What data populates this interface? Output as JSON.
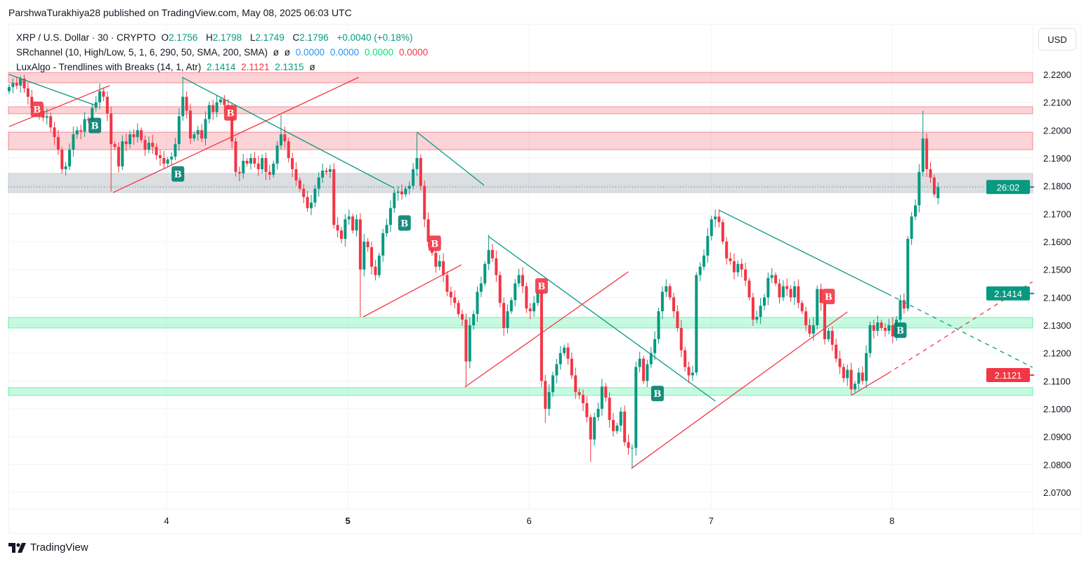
{
  "published": "ParshwaTurakhiya28 published on TradingView.com, May 08, 2025 06:03 UTC",
  "legend": {
    "symbol": "XRP / U.S. Dollar · 30 · CRYPTO",
    "o_label": "O",
    "o": "2.1756",
    "h_label": "H",
    "h": "2.1798",
    "l_label": "L",
    "l": "2.1749",
    "c_label": "C",
    "c": "2.1796",
    "change": "+0.0040 (+0.18%)",
    "ind1_name": "SRchannel (10, High/Low, 5, 1, 6, 290, 50, SMA, 200, SMA)",
    "ind1_vals": [
      "ø",
      "ø",
      "0.0000",
      "0.0000",
      "0.0000",
      "0.0000"
    ],
    "ind2_name": "LuxAlgo - Trendlines with Breaks (14, 1, Atr)",
    "ind2_vals": [
      "2.1414",
      "2.1121",
      "2.1315",
      "ø"
    ]
  },
  "currency_button": "USD",
  "footer_brand": "TradingView",
  "colors": {
    "up": "#089981",
    "down": "#f23645",
    "resistance_zone": "#f23645",
    "support_zone": "#00e676",
    "neutral_zone": "#b2b5be",
    "blue": "#2196f3"
  },
  "chart_data": {
    "type": "candlestick",
    "symbol": "XRP / U.S. Dollar",
    "interval": "30",
    "ylim": [
      2.066,
      2.228
    ],
    "y_ticks": [
      "2.2200",
      "2.2100",
      "2.2000",
      "2.1900",
      "2.1800",
      "2.1700",
      "2.1600",
      "2.1500",
      "2.1400",
      "2.1300",
      "2.1200",
      "2.1100",
      "2.1000",
      "2.0900",
      "2.0800",
      "2.0700"
    ],
    "x_ticks": [
      {
        "label": "4",
        "candle": 41.7,
        "bold": false
      },
      {
        "label": "5",
        "candle": 89.7,
        "bold": true
      },
      {
        "label": "6",
        "candle": 137.7,
        "bold": false
      },
      {
        "label": "7",
        "candle": 185.9,
        "bold": false
      },
      {
        "label": "8",
        "candle": 233.8,
        "bold": false
      }
    ],
    "grid": true,
    "first_open": 2.214,
    "closes": [
      2.2155,
      2.217,
      2.216,
      2.2185,
      2.215,
      2.212,
      2.208,
      2.206,
      2.207,
      2.2045,
      2.205,
      2.201,
      2.1975,
      2.193,
      2.186,
      2.187,
      2.193,
      2.1985,
      2.2,
      2.1995,
      2.204,
      2.2035,
      2.208,
      2.21,
      2.214,
      2.212,
      2.206,
      2.195,
      2.194,
      2.187,
      2.196,
      2.195,
      2.1985,
      2.1975,
      2.2,
      2.1965,
      2.193,
      2.1955,
      2.194,
      2.191,
      2.19,
      2.188,
      2.1895,
      2.1905,
      2.195,
      2.205,
      2.212,
      2.207,
      2.197,
      2.1985,
      2.2,
      2.197,
      2.204,
      2.209,
      2.2065,
      2.21,
      2.211,
      2.209,
      2.207,
      2.196,
      2.185,
      2.1845,
      2.189,
      2.188,
      2.19,
      2.188,
      2.186,
      2.19,
      2.185,
      2.184,
      2.188,
      2.1945,
      2.1985,
      2.196,
      2.19,
      2.186,
      2.182,
      2.179,
      2.176,
      2.172,
      2.174,
      2.179,
      2.183,
      2.1855,
      2.185,
      2.186,
      2.166,
      2.164,
      2.161,
      2.168,
      2.169,
      2.164,
      2.168,
      2.15,
      2.16,
      2.158,
      2.151,
      2.148,
      2.155,
      2.163,
      2.166,
      2.172,
      2.1775,
      2.178,
      2.177,
      2.179,
      2.18,
      2.186,
      2.19,
      2.18,
      2.168,
      2.16,
      2.156,
      2.151,
      2.153,
      2.148,
      2.142,
      2.14,
      2.138,
      2.134,
      2.132,
      2.117,
      2.13,
      2.134,
      2.142,
      2.145,
      2.152,
      2.157,
      2.154,
      2.148,
      2.138,
      2.129,
      2.135,
      2.139,
      2.145,
      2.148,
      2.144,
      2.136,
      2.135,
      2.138,
      2.142,
      2.11,
      2.1,
      2.106,
      2.112,
      2.116,
      2.12,
      2.122,
      2.118,
      2.112,
      2.106,
      2.105,
      2.102,
      2.097,
      2.089,
      2.097,
      2.1,
      2.108,
      2.104,
      2.096,
      2.092,
      2.094,
      2.099,
      2.088,
      2.086,
      2.086,
      2.115,
      2.118,
      2.11,
      2.116,
      2.12,
      2.125,
      2.135,
      2.142,
      2.144,
      2.14,
      2.135,
      2.129,
      2.121,
      2.115,
      2.112,
      2.113,
      2.148,
      2.151,
      2.155,
      2.162,
      2.168,
      2.169,
      2.167,
      2.16,
      2.154,
      2.153,
      2.149,
      2.152,
      2.15,
      2.146,
      2.14,
      2.132,
      2.133,
      2.137,
      2.14,
      2.147,
      2.148,
      2.145,
      2.14,
      2.144,
      2.143,
      2.14,
      2.144,
      2.138,
      2.135,
      2.13,
      2.127,
      2.13,
      2.143,
      2.138,
      2.125,
      2.128,
      2.123,
      2.118,
      2.115,
      2.111,
      2.114,
      2.107,
      2.109,
      2.113,
      2.11,
      2.12,
      2.13,
      2.128,
      2.131,
      2.129,
      2.128,
      2.13,
      2.126,
      2.132,
      2.139,
      2.136,
      2.161,
      2.169,
      2.173,
      2.185,
      2.197,
      2.186,
      2.183,
      2.177,
      2.1796
    ],
    "last_open": 2.1756,
    "wick_extremes": [
      [
        3,
        2.2195,
        null
      ],
      [
        14,
        null,
        2.1845
      ],
      [
        27,
        null,
        2.178
      ],
      [
        46,
        2.219,
        null
      ],
      [
        72,
        2.2055,
        null
      ],
      [
        93,
        null,
        2.133
      ],
      [
        108,
        2.199,
        null
      ],
      [
        121,
        null,
        2.108
      ],
      [
        127,
        2.1625,
        null
      ],
      [
        142,
        null,
        2.095
      ],
      [
        154,
        null,
        2.081
      ],
      [
        165,
        null,
        2.079
      ],
      [
        187,
        2.1715,
        null
      ],
      [
        223,
        null,
        2.105
      ],
      [
        242,
        2.207,
        null
      ]
    ],
    "zones": [
      {
        "kind": "resistance",
        "top": 2.2207,
        "bottom": 2.217
      },
      {
        "kind": "resistance",
        "top": 2.2084,
        "bottom": 2.2059
      },
      {
        "kind": "resistance",
        "top": 2.1993,
        "bottom": 2.193
      },
      {
        "kind": "neutral",
        "top": 2.1845,
        "bottom": 2.1776
      },
      {
        "kind": "support",
        "top": 2.1328,
        "bottom": 2.129
      },
      {
        "kind": "support",
        "top": 2.1076,
        "bottom": 2.1048
      }
    ],
    "trendlines": [
      {
        "color": "up",
        "from": [
          0,
          2.22
        ],
        "to": [
          22.9,
          2.2089
        ]
      },
      {
        "color": "up",
        "from": [
          45.8,
          2.219
        ],
        "to": [
          102,
          2.1792
        ]
      },
      {
        "color": "up",
        "from": [
          108,
          2.1993
        ],
        "to": [
          125.8,
          2.1802
        ]
      },
      {
        "color": "up",
        "from": [
          127,
          2.1618
        ],
        "to": [
          187,
          2.1028
        ]
      },
      {
        "color": "up",
        "from": [
          188,
          2.1713
        ],
        "to": [
          232.6,
          2.1413
        ]
      },
      {
        "color": "up",
        "dashed": true,
        "from": [
          232.6,
          2.1413
        ],
        "to": [
          271,
          2.1149
        ]
      },
      {
        "color": "down",
        "from": [
          0,
          2.2013
        ],
        "to": [
          26.6,
          2.216
        ]
      },
      {
        "color": "down",
        "from": [
          27.5,
          2.1776
        ],
        "to": [
          92.6,
          2.219
        ]
      },
      {
        "color": "down",
        "from": [
          93.8,
          2.133
        ],
        "to": [
          119.8,
          2.1517
        ]
      },
      {
        "color": "down",
        "from": [
          120.7,
          2.1078
        ],
        "to": [
          164,
          2.1492
        ]
      },
      {
        "color": "down",
        "from": [
          164.8,
          2.0786
        ],
        "to": [
          222,
          2.1348
        ]
      },
      {
        "color": "down",
        "from": [
          223,
          2.1048
        ],
        "to": [
          232.6,
          2.1126
        ]
      },
      {
        "color": "down",
        "dashed": true,
        "from": [
          232.6,
          2.1126
        ],
        "to": [
          271,
          2.1456
        ]
      }
    ],
    "break_labels": [
      {
        "text": "B",
        "type": "down",
        "candle": 7.4,
        "price": 2.2075
      },
      {
        "text": "B",
        "type": "down",
        "candle": 58.6,
        "price": 2.2062
      },
      {
        "text": "B",
        "type": "down",
        "candle": 112.7,
        "price": 2.1594
      },
      {
        "text": "B",
        "type": "down",
        "candle": 141,
        "price": 2.1441
      },
      {
        "text": "B",
        "type": "down",
        "candle": 217,
        "price": 2.1403
      },
      {
        "text": "B",
        "type": "up",
        "candle": 22.7,
        "price": 2.2017
      },
      {
        "text": "B",
        "type": "up",
        "candle": 44.7,
        "price": 2.1843
      },
      {
        "text": "B",
        "type": "up",
        "candle": 104.7,
        "price": 2.1667
      },
      {
        "text": "B",
        "type": "up",
        "candle": 171.7,
        "price": 2.1055
      },
      {
        "text": "B",
        "type": "up",
        "candle": 236,
        "price": 2.1282
      }
    ],
    "price_line": 2.1796,
    "axis_badges": [
      {
        "text": "26:02",
        "price": 2.1796,
        "color": "#089981"
      },
      {
        "text": "2.1414",
        "price": 2.1414,
        "color": "#089981"
      },
      {
        "text": "2.1121",
        "price": 2.1121,
        "color": "#f23645"
      }
    ]
  }
}
